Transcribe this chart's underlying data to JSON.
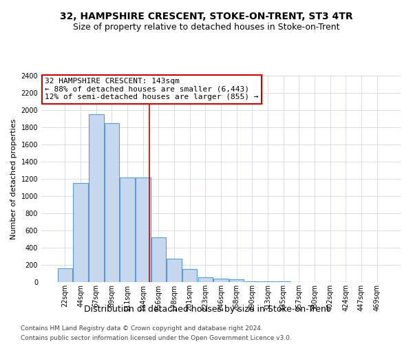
{
  "title": "32, HAMPSHIRE CRESCENT, STOKE-ON-TRENT, ST3 4TR",
  "subtitle": "Size of property relative to detached houses in Stoke-on-Trent",
  "xlabel": "Distribution of detached houses by size in Stoke-on-Trent",
  "ylabel": "Number of detached properties",
  "footnote1": "Contains HM Land Registry data © Crown copyright and database right 2024.",
  "footnote2": "Contains public sector information licensed under the Open Government Licence v3.0.",
  "bar_labels": [
    "22sqm",
    "44sqm",
    "67sqm",
    "89sqm",
    "111sqm",
    "134sqm",
    "156sqm",
    "178sqm",
    "201sqm",
    "223sqm",
    "246sqm",
    "268sqm",
    "290sqm",
    "313sqm",
    "335sqm",
    "357sqm",
    "380sqm",
    "402sqm",
    "424sqm",
    "447sqm",
    "469sqm"
  ],
  "bar_values": [
    160,
    1150,
    1950,
    1850,
    1220,
    1220,
    520,
    270,
    150,
    60,
    40,
    30,
    10,
    8,
    5,
    4,
    3,
    2,
    1,
    1,
    1
  ],
  "bar_color": "#c5d8ed",
  "bar_edge_color": "#5b9bd5",
  "ylim": [
    0,
    2400
  ],
  "yticks": [
    0,
    200,
    400,
    600,
    800,
    1000,
    1200,
    1400,
    1600,
    1800,
    2000,
    2200,
    2400
  ],
  "property_label": "32 HAMPSHIRE CRESCENT: 143sqm",
  "annotation_line1": "← 88% of detached houses are smaller (6,443)",
  "annotation_line2": "12% of semi-detached houses are larger (855) →",
  "vline_color": "#cc0000",
  "vline_x_bar_index": 5.42,
  "bg_color": "#ffffff",
  "grid_color": "#c8d0d8",
  "title_fontsize": 10,
  "subtitle_fontsize": 9,
  "ylabel_fontsize": 8,
  "xlabel_fontsize": 9,
  "tick_fontsize": 7,
  "annotation_fontsize": 8,
  "footnote_fontsize": 6.5
}
